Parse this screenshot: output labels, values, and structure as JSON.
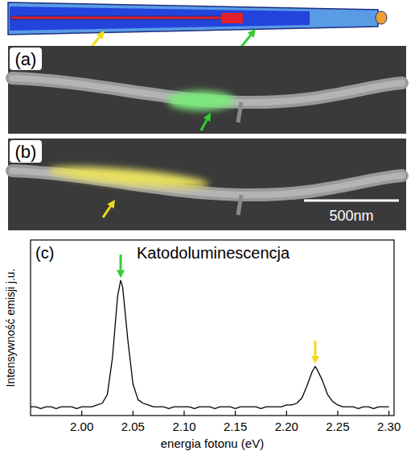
{
  "chart_data": {
    "type": "line",
    "panel": "(c)",
    "title": "Katodoluminescencja",
    "xlabel": "energia fotonu (eV)",
    "ylabel": "Intensywność emisji j.u.",
    "x": [
      1.95,
      1.955,
      1.96,
      1.965,
      1.97,
      1.975,
      1.98,
      1.985,
      1.99,
      1.995,
      2.0,
      2.005,
      2.01,
      2.015,
      2.02,
      2.025,
      2.03,
      2.035,
      2.038,
      2.04,
      2.045,
      2.05,
      2.055,
      2.06,
      2.065,
      2.07,
      2.075,
      2.08,
      2.085,
      2.09,
      2.095,
      2.1,
      2.105,
      2.11,
      2.115,
      2.12,
      2.125,
      2.13,
      2.135,
      2.14,
      2.145,
      2.15,
      2.155,
      2.16,
      2.165,
      2.17,
      2.175,
      2.18,
      2.185,
      2.19,
      2.195,
      2.2,
      2.205,
      2.21,
      2.215,
      2.22,
      2.225,
      2.228,
      2.23,
      2.235,
      2.24,
      2.245,
      2.25,
      2.255,
      2.26,
      2.265,
      2.27,
      2.275,
      2.28,
      2.285,
      2.29,
      2.295,
      2.3
    ],
    "series": [
      {
        "name": "Katodoluminescencja",
        "color": "#000000",
        "values": [
          0.05,
          0.05,
          0.04,
          0.05,
          0.05,
          0.04,
          0.05,
          0.05,
          0.05,
          0.04,
          0.05,
          0.05,
          0.05,
          0.06,
          0.07,
          0.12,
          0.33,
          0.68,
          0.77,
          0.73,
          0.43,
          0.18,
          0.09,
          0.07,
          0.06,
          0.05,
          0.05,
          0.05,
          0.04,
          0.05,
          0.05,
          0.05,
          0.05,
          0.04,
          0.05,
          0.05,
          0.05,
          0.04,
          0.05,
          0.05,
          0.05,
          0.04,
          0.05,
          0.05,
          0.05,
          0.05,
          0.04,
          0.05,
          0.05,
          0.05,
          0.05,
          0.06,
          0.06,
          0.07,
          0.1,
          0.17,
          0.25,
          0.28,
          0.26,
          0.2,
          0.12,
          0.08,
          0.06,
          0.05,
          0.05,
          0.05,
          0.04,
          0.05,
          0.05,
          0.04,
          0.05,
          0.05,
          0.05
        ]
      }
    ],
    "xlim": [
      1.95,
      2.305
    ],
    "ylim": [
      0,
      1
    ],
    "xticks": [
      {
        "value": 2,
        "label": "2.00"
      },
      2.05,
      {
        "value": 2.1,
        "label": "2.10"
      },
      2.15,
      {
        "value": 2.2,
        "label": "2.20"
      },
      2.25,
      {
        "value": 2.3,
        "label": "2.30"
      }
    ],
    "tick_labels": "x",
    "grid": false,
    "arrows": [
      {
        "x": 2.038,
        "color": "#33cc33"
      },
      {
        "x": 2.228,
        "color": "#f0dc1e"
      }
    ]
  },
  "figure": {
    "panel_a": "(a)",
    "panel_b": "(b)",
    "scale_bar": "500nm"
  }
}
